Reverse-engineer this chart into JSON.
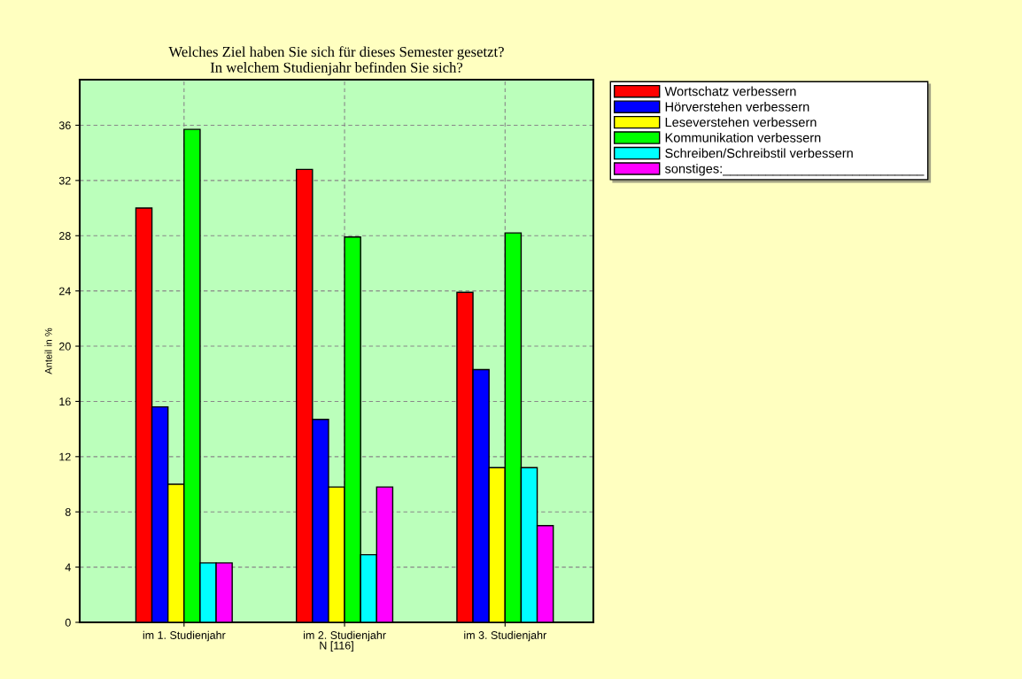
{
  "chart_data": {
    "type": "bar",
    "title": "Welches Ziel haben Sie sich für dieses Semester gesetzt?\nIn welchem Studienjahr befinden Sie sich?",
    "xlabel": "N [116]",
    "ylabel": "Anteil in %",
    "categories": [
      "im 1. Studienjahr",
      "im 2. Studienjahr",
      "im 3. Studienjahr"
    ],
    "series": [
      {
        "name": "Wortschatz verbessern",
        "color": "#ff0000",
        "values": [
          30,
          32.8,
          23.9
        ]
      },
      {
        "name": "Hörverstehen verbessern",
        "color": "#0000ff",
        "values": [
          15.6,
          14.7,
          18.3
        ]
      },
      {
        "name": "Leseverstehen verbessern",
        "color": "#ffff00",
        "values": [
          10,
          9.8,
          11.2
        ]
      },
      {
        "name": "Kommunikation verbessern",
        "color": "#00ff00",
        "values": [
          35.7,
          27.9,
          28.2
        ]
      },
      {
        "name": "Schreiben/Schreibstil verbessern",
        "color": "#00ffff",
        "values": [
          4.3,
          4.9,
          11.2
        ]
      },
      {
        "name": "sonstiges:____________________________",
        "color": "#ff00ff",
        "values": [
          4.3,
          9.8,
          7
        ]
      }
    ],
    "ylim": [
      0,
      39.3
    ],
    "yticks": [
      0,
      4,
      8,
      12,
      16,
      20,
      24,
      28,
      32,
      36
    ],
    "grid": true,
    "legend": "top right"
  }
}
